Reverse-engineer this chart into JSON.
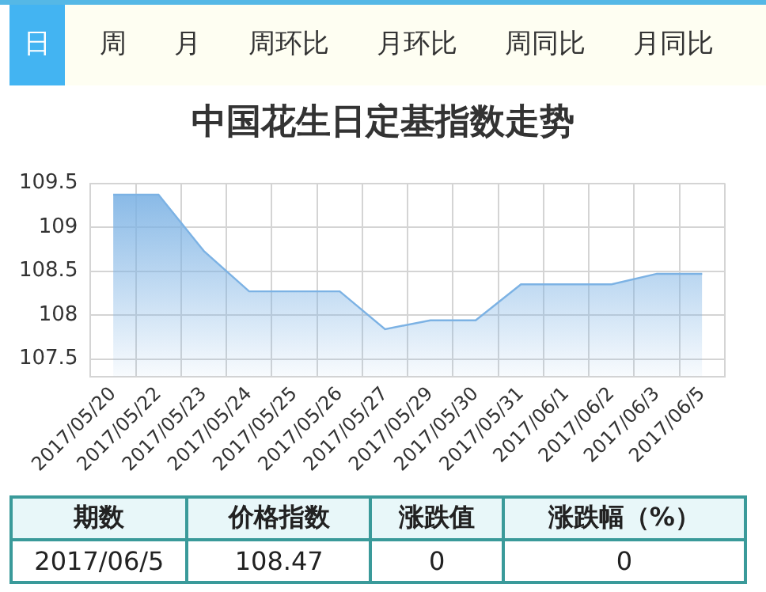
{
  "chart_data": {
    "type": "area",
    "title": "中国花生日定基指数走势",
    "categories": [
      "2017/05/20",
      "2017/05/22",
      "2017/05/23",
      "2017/05/24",
      "2017/05/25",
      "2017/05/26",
      "2017/05/27",
      "2017/05/29",
      "2017/05/30",
      "2017/05/31",
      "2017/06/1",
      "2017/06/2",
      "2017/06/3",
      "2017/06/5"
    ],
    "series": [
      {
        "color": "#7cb2e4",
        "values": [
          109.37,
          109.37,
          108.73,
          108.27,
          108.27,
          108.27,
          107.84,
          107.94,
          107.94,
          108.35,
          108.35,
          108.35,
          108.47,
          108.47
        ]
      }
    ],
    "ylim": [
      107.3,
      109.5
    ],
    "yticks": [
      107.5,
      108,
      108.5,
      109,
      109.5
    ],
    "grid": true,
    "legend": false,
    "marker": "none",
    "annotations": [
      "日",
      "周",
      "月",
      "周环比",
      "月环比",
      "周同比",
      "月同比",
      "期数",
      "价格指数",
      "涨跌值",
      "涨跌幅（%）",
      "2017/06/5",
      "108.47",
      "0",
      "0"
    ]
  }
}
